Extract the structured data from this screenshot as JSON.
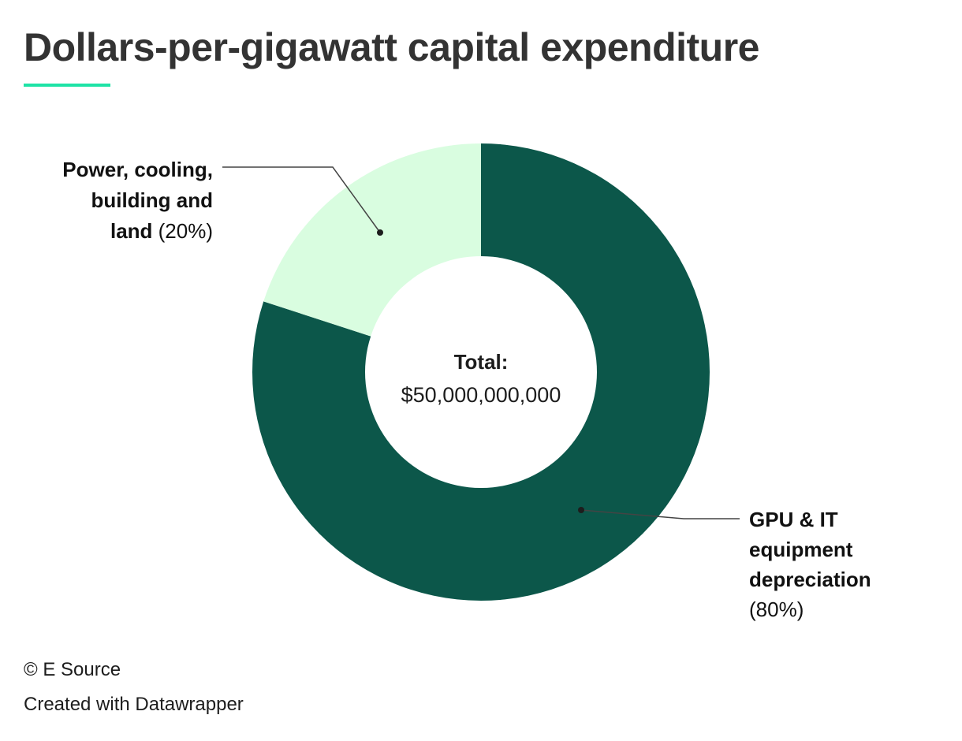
{
  "title": "Dollars-per-gigawatt capital expenditure",
  "colors": {
    "accent_underline": "#1ee3a6",
    "dark_green": "#0c574a",
    "light_green": "#d9fde0",
    "leader_line": "#444444"
  },
  "chart_data": {
    "type": "pie",
    "variant": "donut",
    "title": "Dollars-per-gigawatt capital expenditure",
    "center_label": {
      "heading": "Total:",
      "value": "$50,000,000,000"
    },
    "slices": [
      {
        "label_lines": [
          "GPU & IT",
          "equipment",
          "depreciation"
        ],
        "percent_label": "(80%)",
        "value": 80,
        "color": "#0c574a"
      },
      {
        "label_lines": [
          "Power, cooling,",
          "building and",
          "land"
        ],
        "percent_label": "(20%)",
        "value": 20,
        "color": "#d9fde0"
      }
    ]
  },
  "footer": {
    "copyright": "© E Source",
    "credit": "Created with Datawrapper"
  }
}
